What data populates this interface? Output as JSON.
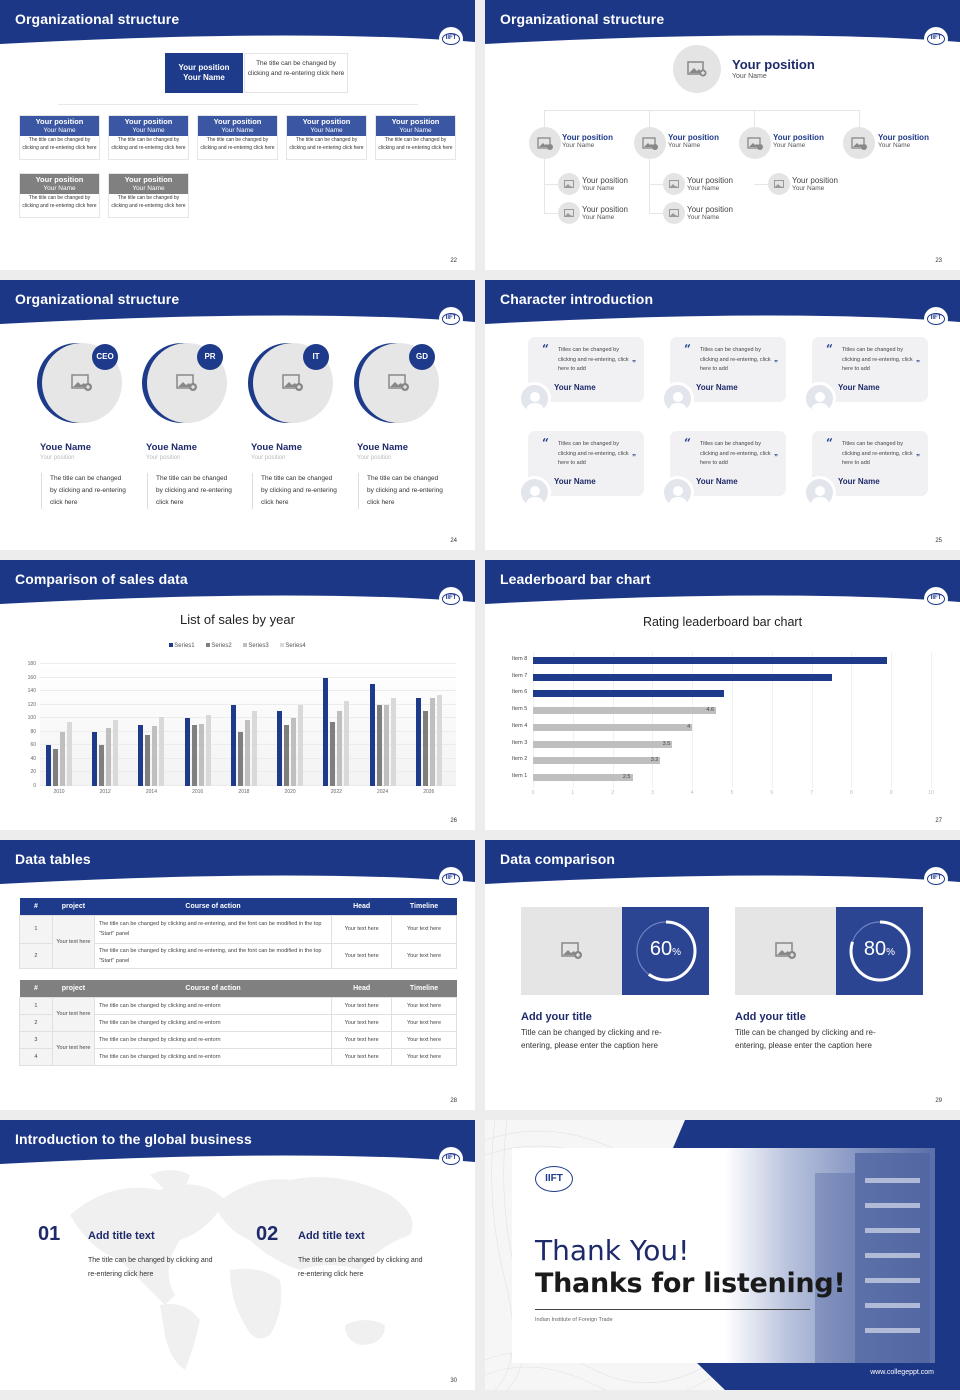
{
  "colors": {
    "brand_blue": "#1e3a8a",
    "header_blue": "#1c3786",
    "card_blue": "#3b56a3",
    "gray_card": "#808080",
    "light_gray": "#e6e6e6",
    "navy_text": "#1e2a6a"
  },
  "logo": {
    "text": "IIFT"
  },
  "slides": [
    {
      "page": "22",
      "title": "Organizational structure",
      "top": {
        "position": "Your position",
        "name": "Your Name",
        "desc": "The title can be changed by clicking and re-entering click here"
      },
      "cards": [
        {
          "position": "Your position",
          "name": "Your Name",
          "desc": "The title can be changed by clicking and re-entering click here"
        },
        {
          "position": "Your position",
          "name": "Your Name",
          "desc": "The title can be changed by clicking and re-entering click here"
        },
        {
          "position": "Your position",
          "name": "Your Name",
          "desc": "The title can be changed by clicking and re-entering click here"
        },
        {
          "position": "Your position",
          "name": "Your Name",
          "desc": "The title can be changed by clicking and re-entering click here"
        },
        {
          "position": "Your position",
          "name": "Your Name",
          "desc": "The title can be changed by clicking and re-entering click here"
        },
        {
          "position": "Your position",
          "name": "Your Name",
          "desc": "The title can be changed by clicking and re-entering click here"
        },
        {
          "position": "Your position",
          "name": "Your Name",
          "desc": "The title can be changed by clicking and re-entering click here"
        }
      ]
    },
    {
      "page": "23",
      "title": "Organizational structure",
      "top": {
        "position": "Your position",
        "name": "Your Name"
      },
      "level2": [
        {
          "position": "Your position",
          "name": "Your Name"
        },
        {
          "position": "Your position",
          "name": "Your Name"
        },
        {
          "position": "Your position",
          "name": "Your Name"
        },
        {
          "position": "Your position",
          "name": "Your Name"
        }
      ],
      "level3": [
        {
          "position": "Your position",
          "name": "Your Name"
        },
        {
          "position": "Your position",
          "name": "Your Name"
        },
        {
          "position": "Your position",
          "name": "Your Name"
        },
        {
          "position": "Your position",
          "name": "Your Name"
        },
        {
          "position": "Your position",
          "name": "Your Name"
        }
      ]
    },
    {
      "page": "24",
      "title": "Organizational structure",
      "people": [
        {
          "badge": "CEO",
          "name": "Youe Name",
          "position": "Your position",
          "desc": "The title can be changed by clicking and re-entering click here"
        },
        {
          "badge": "PR",
          "name": "Youe Name",
          "position": "Your position",
          "desc": "The title can be changed by clicking and re-entering click here"
        },
        {
          "badge": "IT",
          "name": "Youe Name",
          "position": "Your position",
          "desc": "The title can be changed by clicking and re-entering click here"
        },
        {
          "badge": "GD",
          "name": "Youe Name",
          "position": "Your position",
          "desc": "The title can be changed by clicking and re-entering click here"
        }
      ]
    },
    {
      "page": "25",
      "title": "Character introduction",
      "quotes": [
        {
          "text": "Titles can be changed by clicking and re-entering, click here to add",
          "name": "Your Name"
        },
        {
          "text": "Titles can be changed by clicking and re-entering, click here to add",
          "name": "Your Name"
        },
        {
          "text": "Titles can be changed by clicking and re-entering, click here to add",
          "name": "Your Name"
        },
        {
          "text": "Titles can be changed by clicking and re-entering, click here to add",
          "name": "Your Name"
        },
        {
          "text": "Titles can be changed by clicking and re-entering, click here to add",
          "name": "Your Name"
        },
        {
          "text": "Titles can be changed by clicking and re-entering, click here to add",
          "name": "Your Name"
        }
      ]
    },
    {
      "page": "26",
      "title": "Comparison of sales data"
    },
    {
      "page": "27",
      "title": "Leaderboard bar chart"
    },
    {
      "page": "28",
      "title": "Data tables",
      "table1": {
        "headers": [
          "#",
          "project",
          "Course of action",
          "Head",
          "Timeline"
        ],
        "project": "Your text here",
        "rows": [
          {
            "num": "1",
            "action": "The title can be changed by clicking and re-entering, and the font can be modified in the top \"Start\" panel",
            "head": "Your text here",
            "timeline": "Your text here"
          },
          {
            "num": "2",
            "action": "The title can be changed by clicking and re-entering, and the font can be modified in the top \"Start\" panel",
            "head": "Your text here",
            "timeline": "Your text here"
          }
        ]
      },
      "table2": {
        "headers": [
          "#",
          "project",
          "Course of action",
          "Head",
          "Timeline"
        ],
        "projects": [
          "Your text here",
          "Your text here"
        ],
        "rows": [
          {
            "num": "1",
            "action": "The title can be changed by clicking and re-entorn",
            "head": "Your text here",
            "timeline": "Your text here"
          },
          {
            "num": "2",
            "action": "The title can be changed by clicking and re-entorn",
            "head": "Your text here",
            "timeline": "Your text here"
          },
          {
            "num": "3",
            "action": "The title can be changed by clicking and re-entorn",
            "head": "Your text here",
            "timeline": "Your text here"
          },
          {
            "num": "4",
            "action": "The title can be changed by clicking and re-entorn",
            "head": "Your text here",
            "timeline": "Your text here"
          }
        ]
      }
    },
    {
      "page": "29",
      "title": "Data comparison",
      "items": [
        {
          "percent": "60",
          "unit": "%",
          "value": 60,
          "title": "Add your title",
          "desc": "Title can be changed by clicking and re-entering, please enter the caption here"
        },
        {
          "percent": "80",
          "unit": "%",
          "value": 80,
          "title": "Add your title",
          "desc": "Title can be changed by clicking and re-entering, please enter the caption here"
        }
      ]
    },
    {
      "page": "30",
      "title": "Introduction to the global business",
      "items": [
        {
          "num": "01",
          "title": "Add title text",
          "desc": "The title can be changed by clicking and re-entering click here"
        },
        {
          "num": "02",
          "title": "Add title text",
          "desc": "The title can be changed by clicking and re-entering click here"
        }
      ]
    },
    {
      "title": "Thank You!",
      "subtitle": "Thanks for listening!",
      "institute": "Indian Institute of Foreign Trade",
      "website": "www.collegeppt.com"
    }
  ],
  "chart_data": [
    {
      "type": "bar",
      "title": "List of sales by year",
      "categories": [
        "2010",
        "2012",
        "2014",
        "2016",
        "2018",
        "2020",
        "2022",
        "2024",
        "2026"
      ],
      "series": [
        {
          "name": "Series1",
          "color": "#1e3a8a",
          "values": [
            60,
            80,
            90,
            100,
            120,
            110,
            160,
            150,
            130
          ]
        },
        {
          "name": "Series2",
          "color": "#7f7f7f",
          "values": [
            55,
            60,
            75,
            90,
            80,
            90,
            95,
            120,
            110
          ]
        },
        {
          "name": "Series3",
          "color": "#bfbfbf",
          "values": [
            80,
            85,
            88,
            92,
            98,
            100,
            110,
            120,
            130
          ]
        },
        {
          "name": "Series4",
          "color": "#d9d9d9",
          "values": [
            95,
            98,
            102,
            105,
            110,
            120,
            125,
            130,
            135
          ]
        }
      ],
      "yticks": [
        "0",
        "20",
        "40",
        "60",
        "80",
        "100",
        "120",
        "140",
        "160",
        "180"
      ],
      "ylim": [
        0,
        180
      ],
      "xlabel": "",
      "ylabel": "",
      "legend_position": "top",
      "grid": true
    },
    {
      "type": "bar",
      "orientation": "horizontal",
      "title": "Rating leaderboard bar chart",
      "categories": [
        "Item 8",
        "Item 7",
        "Item 6",
        "Item 5",
        "Item 4",
        "Item 3",
        "Item 2",
        "Item 1"
      ],
      "values": [
        8.9,
        7.5,
        4.8,
        4.6,
        4,
        3.5,
        3.2,
        2.5
      ],
      "labels": [
        "",
        "",
        "",
        "4.6",
        "4",
        "3.5",
        "3.2",
        "2.5"
      ],
      "highlight_color": "#1e3a8a",
      "base_color": "#bfbfbf",
      "xticks": [
        "0",
        "1",
        "2",
        "3",
        "4",
        "5",
        "6",
        "7",
        "8",
        "9",
        "10"
      ],
      "xlim": [
        0,
        10
      ],
      "grid": true
    }
  ]
}
